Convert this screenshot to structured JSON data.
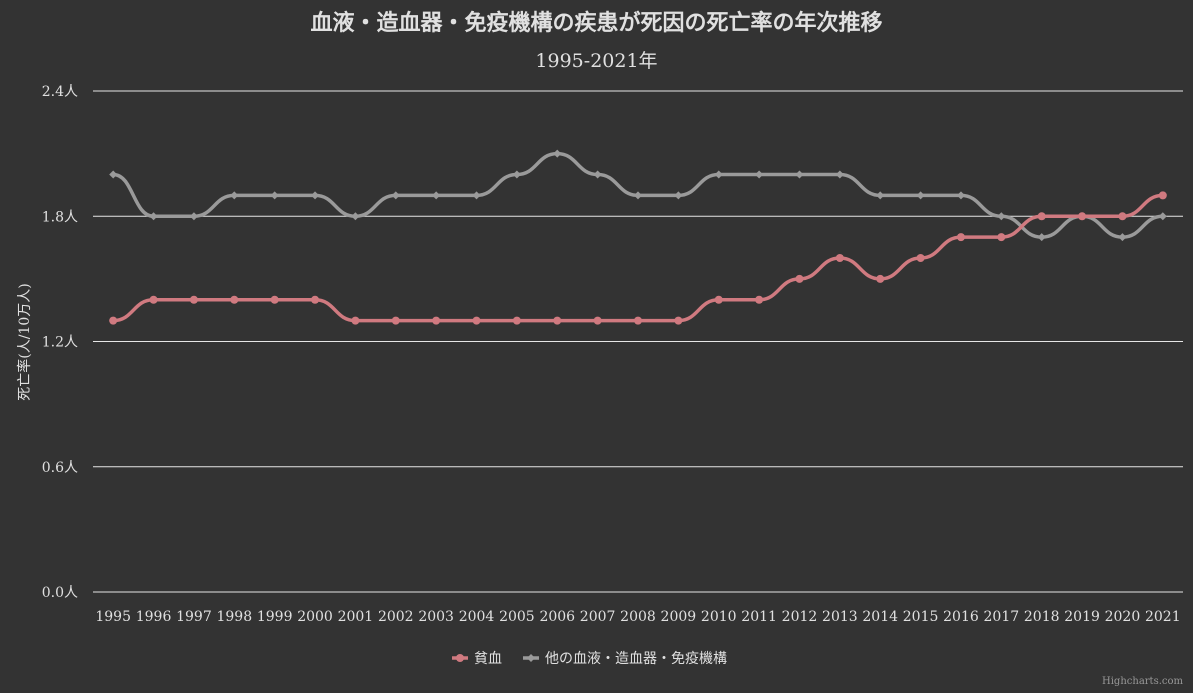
{
  "colors": {
    "background": "#333333",
    "series_anemia": "#d07a80",
    "series_other": "#9a9a9a",
    "text": "#e0e0e0",
    "grid": "#e6e6e6"
  },
  "credits": "Highcharts.com",
  "chart_data": {
    "type": "line",
    "title": "血液・造血器・免疫機構の疾患が死因の死亡率の年次推移",
    "subtitle": "1995-2021年",
    "ylabel": "死亡率(人/10万人)",
    "xlabel": "",
    "ylim": [
      0,
      2.4
    ],
    "yticks": [
      "0.0人",
      "0.6人",
      "1.2人",
      "1.8人",
      "2.4人"
    ],
    "grid": true,
    "legend_position": "bottom-center",
    "categories": [
      "1995",
      "1996",
      "1997",
      "1998",
      "1999",
      "2000",
      "2001",
      "2002",
      "2003",
      "2004",
      "2005",
      "2006",
      "2007",
      "2008",
      "2009",
      "2010",
      "2011",
      "2012",
      "2013",
      "2014",
      "2015",
      "2016",
      "2017",
      "2018",
      "2019",
      "2020",
      "2021"
    ],
    "series": [
      {
        "name": "貧血",
        "color": "#d07a80",
        "marker": "circle",
        "values": [
          1.3,
          1.4,
          1.4,
          1.4,
          1.4,
          1.4,
          1.3,
          1.3,
          1.3,
          1.3,
          1.3,
          1.3,
          1.3,
          1.3,
          1.3,
          1.4,
          1.4,
          1.5,
          1.6,
          1.5,
          1.6,
          1.7,
          1.7,
          1.8,
          1.8,
          1.8,
          1.9
        ]
      },
      {
        "name": "他の血液・造血器・免疫機構",
        "color": "#9a9a9a",
        "marker": "diamond",
        "values": [
          2.0,
          1.8,
          1.8,
          1.9,
          1.9,
          1.9,
          1.8,
          1.9,
          1.9,
          1.9,
          2.0,
          2.1,
          2.0,
          1.9,
          1.9,
          2.0,
          2.0,
          2.0,
          2.0,
          1.9,
          1.9,
          1.9,
          1.8,
          1.7,
          1.8,
          1.7,
          1.8
        ]
      }
    ]
  }
}
